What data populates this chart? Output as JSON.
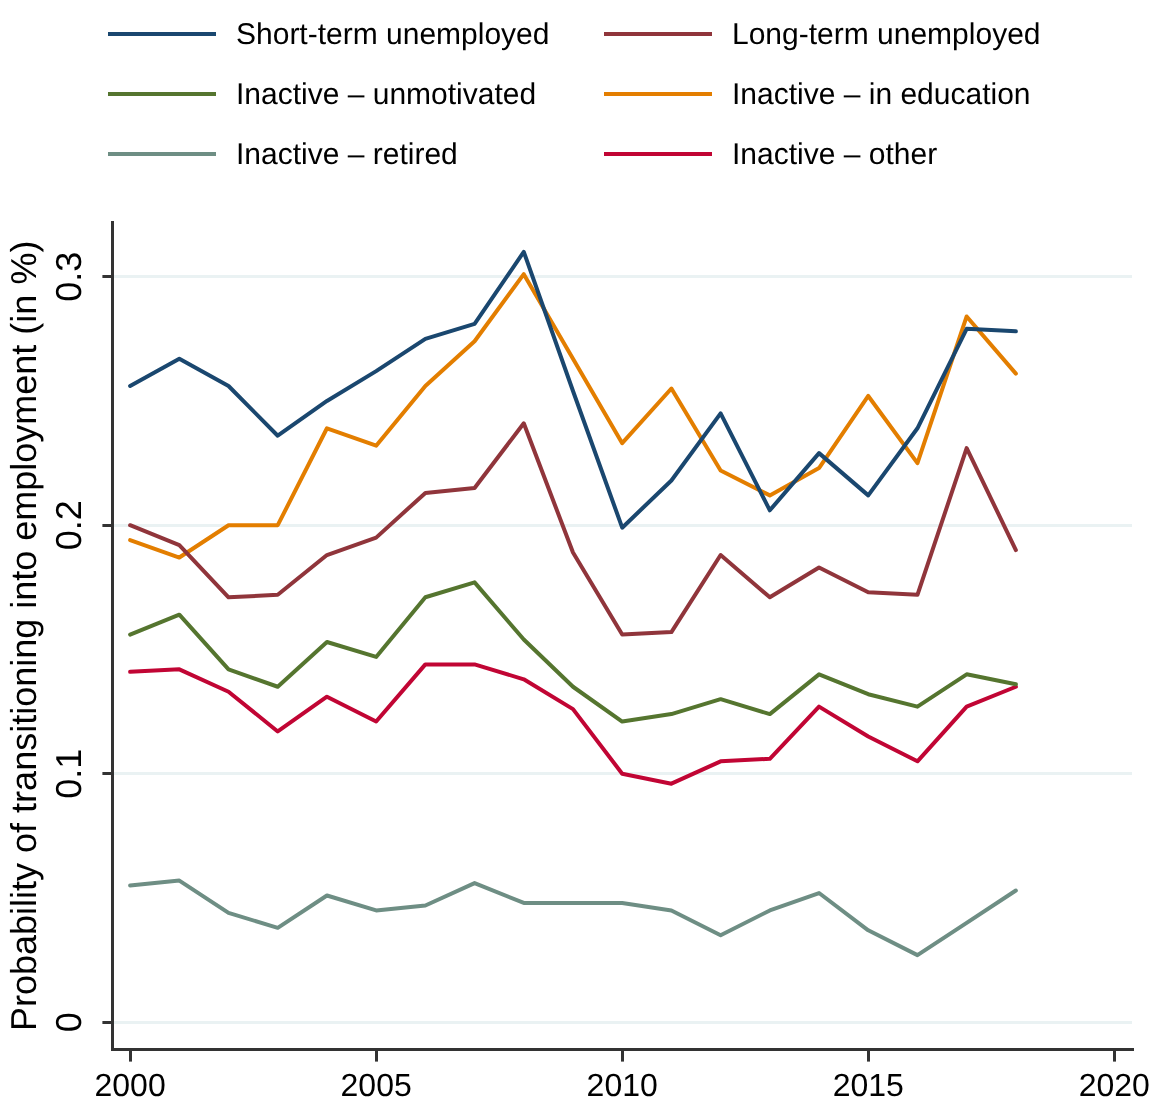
{
  "chart_data": {
    "type": "line",
    "ylabel": "Probability of transitioning into employment (in %)",
    "x": [
      2000,
      2001,
      2002,
      2003,
      2004,
      2005,
      2006,
      2007,
      2008,
      2009,
      2010,
      2011,
      2012,
      2013,
      2014,
      2015,
      2016,
      2017,
      2018
    ],
    "xlim": [
      1999.64,
      2020.36
    ],
    "xticks": [
      2000,
      2005,
      2010,
      2015,
      2020
    ],
    "ylim": [
      -0.011,
      0.322
    ],
    "yticks": [
      0,
      0.1,
      0.2,
      0.3
    ],
    "grid": "y",
    "legend": "top",
    "line_style": "solid",
    "series": [
      {
        "name": "Short-term unemployed",
        "color": "#1a476f",
        "values": [
          0.256,
          0.267,
          0.256,
          0.236,
          0.25,
          0.262,
          0.275,
          0.281,
          0.31,
          0.254,
          0.199,
          0.218,
          0.245,
          0.206,
          0.229,
          0.212,
          0.239,
          0.279,
          0.278
        ]
      },
      {
        "name": "Long-term unemployed",
        "color": "#90353b",
        "values": [
          0.2,
          0.192,
          0.171,
          0.172,
          0.188,
          0.195,
          0.213,
          0.215,
          0.241,
          0.189,
          0.156,
          0.157,
          0.188,
          0.171,
          0.183,
          0.173,
          0.172,
          0.231,
          0.19
        ]
      },
      {
        "name": "Inactive – unmotivated",
        "color": "#55752f",
        "values": [
          0.156,
          0.164,
          0.142,
          0.135,
          0.153,
          0.147,
          0.171,
          0.177,
          0.154,
          0.135,
          0.121,
          0.124,
          0.13,
          0.124,
          0.14,
          0.132,
          0.127,
          0.14,
          0.136
        ]
      },
      {
        "name": "Inactive – in education",
        "color": "#e37e00",
        "values": [
          0.194,
          0.187,
          0.2,
          0.2,
          0.239,
          0.232,
          0.256,
          0.274,
          0.301,
          0.267,
          0.233,
          0.255,
          0.222,
          0.212,
          0.223,
          0.252,
          0.225,
          0.284,
          0.261
        ]
      },
      {
        "name": "Inactive – retired",
        "color": "#6e8e84",
        "values": [
          0.055,
          0.057,
          0.044,
          0.038,
          0.051,
          0.045,
          0.047,
          0.056,
          0.048,
          0.048,
          0.048,
          0.045,
          0.035,
          0.045,
          0.052,
          0.037,
          0.027,
          0.04,
          0.053
        ]
      },
      {
        "name": "Inactive – other",
        "color": "#c10534",
        "values": [
          0.141,
          0.142,
          0.133,
          0.117,
          0.131,
          0.121,
          0.144,
          0.144,
          0.138,
          0.126,
          0.1,
          0.096,
          0.105,
          0.106,
          0.127,
          0.115,
          0.105,
          0.127,
          0.135
        ]
      }
    ]
  }
}
